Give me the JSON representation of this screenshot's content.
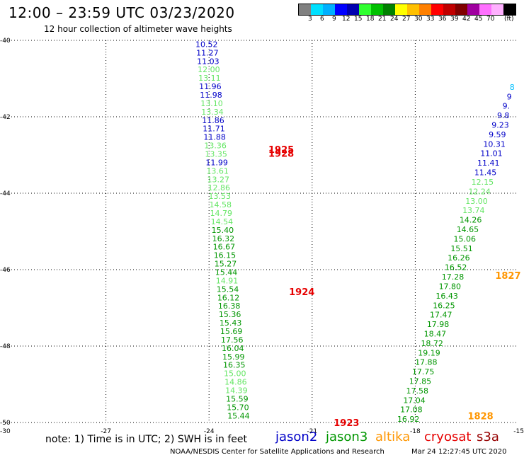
{
  "header": {
    "title": "12:00 – 23:59 UTC 03/23/2020",
    "subtitle": "12 hour collection of altimeter wave heights"
  },
  "color_scale": {
    "colors": [
      "#808080",
      "#00e0ff",
      "#00b0ff",
      "#0000ff",
      "#0000b0",
      "#30ff30",
      "#00c000",
      "#008000",
      "#ffff00",
      "#ffc000",
      "#ff8000",
      "#ff0000",
      "#c00000",
      "#800000",
      "#a000a0",
      "#ff70ff",
      "#ffb0ff",
      "#000000"
    ],
    "labels": [
      "3",
      "6",
      "9",
      "12",
      "15",
      "18",
      "21",
      "24",
      "27",
      "30",
      "33",
      "36",
      "39",
      "42",
      "45",
      "70"
    ],
    "unit": "(ft)"
  },
  "chart_data": {
    "type": "scatter",
    "title": "12:00 – 23:59 UTC 03/23/2020",
    "subtitle": "12 hour collection of altimeter wave heights",
    "xlim": [
      -30,
      -15
    ],
    "ylim": [
      -50,
      -40
    ],
    "x_ticks": [
      "-30",
      "-27",
      "-24",
      "-21",
      "-18",
      "-15"
    ],
    "y_ticks": [
      "-40",
      "-42",
      "-44",
      "-46",
      "-48",
      "-50"
    ],
    "grid": true,
    "series_colors": {
      "jason2": "#0000c8",
      "jason3": "#009600",
      "jason3_light": "#64e664",
      "altika": "#ff9600",
      "cryosat": "#e60000"
    },
    "tracks": [
      {
        "name": "track_west",
        "lon_start": -24.07,
        "lon_end": -23.14,
        "lat_start": -40.1,
        "lat_end": -49.82,
        "values": [
          "10.52",
          "11.27",
          "11.03",
          "12.00",
          "13.11",
          "11.96",
          "11.98",
          "13.10",
          "13.34",
          "11.86",
          "11.71",
          "11.88",
          "13.36",
          "13.35",
          "11.99",
          "13.61",
          "13.27",
          "12.86",
          "13.53",
          "14.58",
          "14.79",
          "14.54",
          "15.40",
          "16.32",
          "16.67",
          "16.15",
          "15.27",
          "15.44",
          "14.91",
          "15.54",
          "16.12",
          "16.38",
          "15.36",
          "15.43",
          "15.69",
          "17.56",
          "16.04",
          "15.99",
          "16.35",
          "15.00",
          "14.86",
          "14.39",
          "15.59",
          "15.70",
          "15.44"
        ],
        "colors": [
          "jason2",
          "jason2",
          "jason2",
          "jason3_light",
          "jason3_light",
          "jason2",
          "jason2",
          "jason3_light",
          "jason3_light",
          "jason2",
          "jason2",
          "jason2",
          "jason3_light",
          "jason3_light",
          "jason2",
          "jason3_light",
          "jason3_light",
          "jason3_light",
          "jason3_light",
          "jason3_light",
          "jason3_light",
          "jason3_light",
          "jason3",
          "jason3",
          "jason3",
          "jason3",
          "jason3",
          "jason3",
          "jason3_light",
          "jason3",
          "jason3",
          "jason3",
          "jason3",
          "jason3",
          "jason3",
          "jason3",
          "jason3",
          "jason3",
          "jason3",
          "jason3_light",
          "jason3_light",
          "jason3_light",
          "jason3",
          "jason3",
          "jason3"
        ]
      },
      {
        "name": "track_east",
        "lon_start": -15.18,
        "lon_end": -18.2,
        "lat_start": -41.22,
        "lat_end": -49.91,
        "values": [
          "8",
          "9",
          "9.",
          "9.8",
          "9.23",
          "9.59",
          "10.31",
          "11.01",
          "11.41",
          "11.45",
          "12.15",
          "12.24",
          "13.00",
          "13.74",
          "14.26",
          "14.65",
          "15.06",
          "15.51",
          "16.26",
          "16.52",
          "17.28",
          "17.80",
          "16.43",
          "16.25",
          "17.47",
          "17.98",
          "18.47",
          "18.72",
          "19.19",
          "17.88",
          "17.75",
          "17.85",
          "17.58",
          "17.04",
          "17.08",
          "16.92"
        ],
        "colors": [
          "jason2_light",
          "jason2",
          "jason2",
          "jason2",
          "jason2",
          "jason2",
          "jason2",
          "jason2",
          "jason2",
          "jason2",
          "jason3_light",
          "jason3_light",
          "jason3_light",
          "jason3_light",
          "jason3",
          "jason3",
          "jason3",
          "jason3",
          "jason3",
          "jason3",
          "jason3",
          "jason3",
          "jason3",
          "jason3",
          "jason3",
          "jason3",
          "jason3",
          "jason3",
          "jason3",
          "jason3",
          "jason3",
          "jason3",
          "jason3",
          "jason3",
          "jason3",
          "jason3"
        ]
      }
    ],
    "time_labels": [
      {
        "text": "1925",
        "lon": -21.9,
        "lat": -42.85,
        "series": "cryosat"
      },
      {
        "text": "1928",
        "lon": -21.9,
        "lat": -42.95,
        "series": "cryosat"
      },
      {
        "text": "1924",
        "lon": -21.3,
        "lat": -46.57,
        "series": "cryosat"
      },
      {
        "text": "1923",
        "lon": -20.0,
        "lat": -50.0,
        "series": "cryosat"
      },
      {
        "text": "1827",
        "lon": -15.3,
        "lat": -46.15,
        "series": "altika"
      },
      {
        "text": "1828",
        "lon": -16.1,
        "lat": -49.82,
        "series": "altika"
      }
    ]
  },
  "legend": {
    "note": "note: 1) Time is in UTC; 2) SWH is in feet",
    "satellites": [
      {
        "name": "jason2",
        "color": "#0000c8"
      },
      {
        "name": "jason3",
        "color": "#009600"
      },
      {
        "name": "altika",
        "color": "#ff9600"
      },
      {
        "name": "cryosat",
        "color": "#e60000"
      },
      {
        "name": "s3a",
        "color": "#960000"
      }
    ]
  },
  "footer": {
    "credit": "NOAA/NESDIS Center for Satellite Applications and Research",
    "timestamp": "Mar 24 12:27:45 UTC 2020"
  }
}
